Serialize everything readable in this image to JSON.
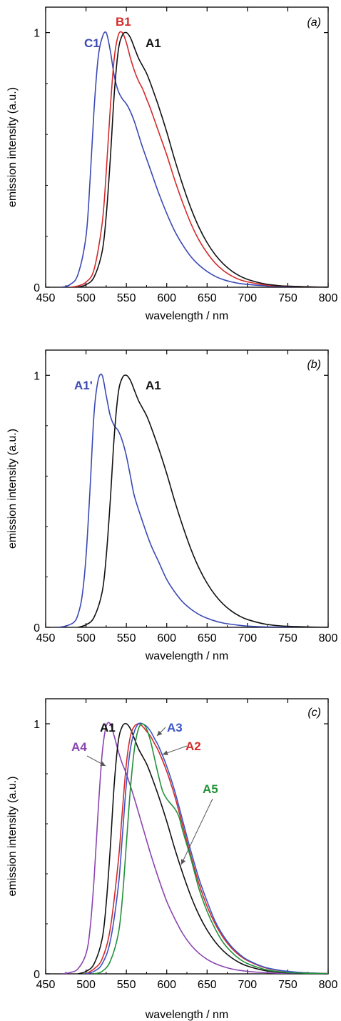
{
  "chart_data": [
    {
      "type": "line",
      "panel_tag": "(a)",
      "xlabel": "wavelength / nm",
      "ylabel": "emission intensity (a.u.)",
      "xlim": [
        450,
        800
      ],
      "ylim": [
        0,
        1.1
      ],
      "xticks": [
        "450",
        "500",
        "550",
        "600",
        "650",
        "700",
        "750",
        "800"
      ],
      "yticks": [
        "0",
        "1"
      ],
      "grid": false,
      "series": [
        {
          "name": "C1",
          "color": "#3a49b4",
          "x": [
            470,
            480,
            490,
            500,
            505,
            510,
            515,
            520,
            525,
            530,
            535,
            540,
            545,
            550,
            555,
            560,
            565,
            570,
            580,
            590,
            600,
            610,
            620,
            630,
            640,
            650,
            660,
            670,
            680,
            690,
            700,
            720,
            740,
            760,
            780,
            800
          ],
          "y": [
            0,
            0.01,
            0.05,
            0.2,
            0.42,
            0.7,
            0.9,
            0.98,
            1.0,
            0.93,
            0.83,
            0.77,
            0.74,
            0.72,
            0.69,
            0.65,
            0.6,
            0.55,
            0.46,
            0.37,
            0.29,
            0.22,
            0.165,
            0.12,
            0.087,
            0.062,
            0.043,
            0.03,
            0.021,
            0.015,
            0.011,
            0.006,
            0.003,
            0.002,
            0.001,
            0
          ]
        },
        {
          "name": "B1",
          "color": "#d32b2b",
          "x": [
            480,
            490,
            500,
            510,
            520,
            525,
            530,
            535,
            540,
            545,
            550,
            555,
            560,
            565,
            570,
            575,
            580,
            590,
            600,
            610,
            620,
            630,
            640,
            650,
            660,
            670,
            680,
            690,
            700,
            720,
            740,
            760,
            780,
            800
          ],
          "y": [
            0,
            0.005,
            0.02,
            0.07,
            0.25,
            0.45,
            0.7,
            0.9,
            0.99,
            1.0,
            0.96,
            0.9,
            0.85,
            0.81,
            0.78,
            0.74,
            0.7,
            0.61,
            0.52,
            0.42,
            0.33,
            0.25,
            0.185,
            0.135,
            0.095,
            0.066,
            0.045,
            0.03,
            0.021,
            0.01,
            0.005,
            0.003,
            0.001,
            0
          ]
        },
        {
          "name": "A1",
          "color": "#111111",
          "x": [
            490,
            500,
            510,
            520,
            525,
            530,
            535,
            540,
            545,
            550,
            555,
            560,
            565,
            570,
            575,
            580,
            590,
            600,
            610,
            620,
            630,
            640,
            650,
            660,
            670,
            680,
            690,
            700,
            720,
            740,
            760,
            780,
            800
          ],
          "y": [
            0,
            0.01,
            0.04,
            0.14,
            0.28,
            0.5,
            0.76,
            0.93,
            0.99,
            1.0,
            0.98,
            0.94,
            0.9,
            0.87,
            0.84,
            0.8,
            0.71,
            0.61,
            0.5,
            0.4,
            0.31,
            0.235,
            0.175,
            0.128,
            0.092,
            0.065,
            0.045,
            0.031,
            0.014,
            0.006,
            0.003,
            0.001,
            0
          ]
        }
      ],
      "series_labels": [
        {
          "text": "C1",
          "color": "#3a49b4"
        },
        {
          "text": "B1",
          "color": "#d32b2b"
        },
        {
          "text": "A1",
          "color": "#111111"
        }
      ]
    },
    {
      "type": "line",
      "panel_tag": "(b)",
      "xlabel": "wavelength / nm",
      "ylabel": "emission intensity (a.u.)",
      "xlim": [
        450,
        800
      ],
      "ylim": [
        0,
        1.1
      ],
      "xticks": [
        "450",
        "500",
        "550",
        "600",
        "650",
        "700",
        "750",
        "800"
      ],
      "yticks": [
        "0",
        "1"
      ],
      "grid": false,
      "series": [
        {
          "name": "A1'",
          "color": "#3a49b4",
          "x": [
            465,
            475,
            485,
            490,
            495,
            500,
            505,
            510,
            515,
            520,
            525,
            530,
            535,
            540,
            545,
            550,
            555,
            560,
            570,
            580,
            590,
            600,
            610,
            620,
            630,
            640,
            650,
            660,
            670,
            680,
            690,
            700,
            720,
            740,
            760,
            780,
            800
          ],
          "y": [
            0,
            0.005,
            0.02,
            0.05,
            0.12,
            0.28,
            0.55,
            0.85,
            0.98,
            1.0,
            0.92,
            0.84,
            0.8,
            0.78,
            0.74,
            0.68,
            0.6,
            0.52,
            0.42,
            0.33,
            0.26,
            0.19,
            0.14,
            0.1,
            0.072,
            0.051,
            0.036,
            0.025,
            0.017,
            0.012,
            0.008,
            0.005,
            0.002,
            0.001,
            0,
            0,
            0
          ]
        },
        {
          "name": "A1",
          "color": "#111111",
          "x": [
            490,
            500,
            510,
            520,
            525,
            530,
            535,
            540,
            545,
            550,
            555,
            560,
            565,
            570,
            575,
            580,
            590,
            600,
            610,
            620,
            630,
            640,
            650,
            660,
            670,
            680,
            690,
            700,
            720,
            740,
            760,
            780,
            800
          ],
          "y": [
            0,
            0.01,
            0.04,
            0.14,
            0.28,
            0.5,
            0.76,
            0.93,
            0.99,
            1.0,
            0.98,
            0.94,
            0.9,
            0.87,
            0.84,
            0.8,
            0.71,
            0.61,
            0.5,
            0.4,
            0.31,
            0.235,
            0.175,
            0.128,
            0.092,
            0.065,
            0.045,
            0.031,
            0.014,
            0.006,
            0.003,
            0.001,
            0
          ]
        }
      ],
      "series_labels": [
        {
          "text": "A1'",
          "color": "#3a49b4"
        },
        {
          "text": "A1",
          "color": "#111111"
        }
      ]
    },
    {
      "type": "line",
      "panel_tag": "(c)",
      "xlabel": "wavelength / nm",
      "ylabel": "emission intensity (a.u.)",
      "xlim": [
        450,
        800
      ],
      "ylim": [
        0,
        1.1
      ],
      "xticks": [
        "450",
        "500",
        "550",
        "600",
        "650",
        "700",
        "750",
        "800"
      ],
      "yticks": [
        "0",
        "1"
      ],
      "grid": false,
      "series": [
        {
          "name": "A4",
          "color": "#8a45b0",
          "x": [
            470,
            480,
            490,
            500,
            505,
            510,
            515,
            520,
            525,
            530,
            535,
            540,
            545,
            550,
            560,
            570,
            580,
            590,
            600,
            610,
            620,
            630,
            640,
            650,
            660,
            670,
            680,
            690,
            700,
            720,
            740,
            760,
            780,
            800
          ],
          "y": [
            0,
            0.005,
            0.02,
            0.08,
            0.18,
            0.38,
            0.65,
            0.88,
            0.99,
            1.0,
            0.95,
            0.89,
            0.84,
            0.8,
            0.7,
            0.59,
            0.48,
            0.38,
            0.29,
            0.22,
            0.16,
            0.115,
            0.082,
            0.058,
            0.041,
            0.029,
            0.02,
            0.014,
            0.01,
            0.005,
            0.002,
            0.001,
            0,
            0
          ]
        },
        {
          "name": "A1",
          "color": "#111111",
          "x": [
            490,
            500,
            510,
            520,
            525,
            530,
            535,
            540,
            545,
            550,
            555,
            560,
            565,
            570,
            575,
            580,
            590,
            600,
            610,
            620,
            630,
            640,
            650,
            660,
            670,
            680,
            690,
            700,
            720,
            740,
            760,
            780,
            800
          ],
          "y": [
            0,
            0.01,
            0.04,
            0.14,
            0.28,
            0.5,
            0.76,
            0.93,
            0.99,
            1.0,
            0.98,
            0.94,
            0.9,
            0.87,
            0.84,
            0.8,
            0.71,
            0.61,
            0.5,
            0.4,
            0.31,
            0.235,
            0.175,
            0.128,
            0.092,
            0.065,
            0.045,
            0.031,
            0.014,
            0.006,
            0.003,
            0.001,
            0
          ]
        },
        {
          "name": "A2",
          "color": "#d32b2b",
          "x": [
            500,
            510,
            520,
            530,
            540,
            545,
            550,
            555,
            560,
            565,
            570,
            575,
            580,
            585,
            590,
            600,
            610,
            620,
            630,
            640,
            650,
            660,
            670,
            680,
            690,
            700,
            720,
            740,
            760,
            780,
            800
          ],
          "y": [
            0,
            0.02,
            0.06,
            0.18,
            0.45,
            0.65,
            0.84,
            0.95,
            0.99,
            1.0,
            0.99,
            0.97,
            0.95,
            0.92,
            0.89,
            0.81,
            0.71,
            0.59,
            0.47,
            0.36,
            0.27,
            0.2,
            0.145,
            0.104,
            0.074,
            0.053,
            0.026,
            0.013,
            0.006,
            0.003,
            0.001
          ]
        },
        {
          "name": "A3",
          "color": "#3a55c8",
          "x": [
            500,
            510,
            520,
            530,
            540,
            545,
            550,
            555,
            560,
            565,
            570,
            575,
            580,
            585,
            590,
            600,
            610,
            620,
            630,
            640,
            650,
            660,
            670,
            680,
            690,
            700,
            720,
            740,
            760,
            780,
            800
          ],
          "y": [
            0,
            0.01,
            0.04,
            0.13,
            0.35,
            0.55,
            0.76,
            0.9,
            0.97,
            1.0,
            1.0,
            0.99,
            0.97,
            0.94,
            0.91,
            0.83,
            0.73,
            0.61,
            0.49,
            0.38,
            0.29,
            0.21,
            0.153,
            0.11,
            0.079,
            0.056,
            0.028,
            0.014,
            0.007,
            0.003,
            0.001
          ]
        },
        {
          "name": "A5",
          "color": "#23913a",
          "x": [
            510,
            520,
            530,
            540,
            545,
            550,
            555,
            560,
            565,
            570,
            575,
            580,
            585,
            590,
            595,
            600,
            605,
            610,
            615,
            620,
            630,
            640,
            650,
            660,
            670,
            680,
            690,
            700,
            720,
            740,
            760,
            780,
            800
          ],
          "y": [
            0,
            0.01,
            0.05,
            0.16,
            0.3,
            0.52,
            0.74,
            0.9,
            0.98,
            1.0,
            0.98,
            0.93,
            0.86,
            0.79,
            0.73,
            0.7,
            0.68,
            0.66,
            0.63,
            0.57,
            0.46,
            0.34,
            0.25,
            0.18,
            0.125,
            0.088,
            0.06,
            0.041,
            0.019,
            0.008,
            0.004,
            0.002,
            0.001
          ]
        }
      ],
      "series_labels": [
        {
          "text": "A1",
          "color": "#111111"
        },
        {
          "text": "A3",
          "color": "#3a55c8"
        },
        {
          "text": "A4",
          "color": "#8a45b0"
        },
        {
          "text": "A2",
          "color": "#d32b2b"
        },
        {
          "text": "A5",
          "color": "#23913a"
        }
      ]
    }
  ]
}
